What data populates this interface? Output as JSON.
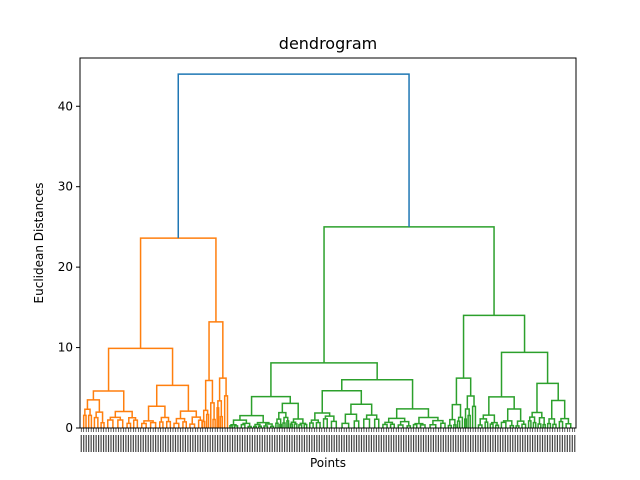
{
  "chart_data": {
    "type": "dendrogram",
    "title": "dendrogram",
    "xlabel": "Points",
    "ylabel": "Euclidean Distances",
    "ylim": [
      0,
      46
    ],
    "yticks": [
      0,
      10,
      20,
      30,
      40
    ],
    "leaf_count": 200,
    "grid": false,
    "legend": "none",
    "colors": {
      "root": "#1f77b4",
      "cluster_1": "#ff7f0e",
      "cluster_2": "#2ca02c",
      "axis": "#000000"
    },
    "merges": {
      "root": {
        "height": 44.0,
        "left_child_height": 23.6,
        "right_child_height": 25.0
      },
      "cluster_1": {
        "top": 23.6,
        "subclusters": [
          {
            "height": 9.9,
            "children": [
              4.6,
              5.3
            ]
          },
          {
            "height": 13.2,
            "children": [
              5.9,
              6.2
            ]
          }
        ]
      },
      "cluster_2": {
        "top": 25.0,
        "subclusters": [
          {
            "height": 8.1,
            "children": [
              3.9,
              6.0
            ]
          },
          {
            "height": 14.0,
            "children": [
              6.2,
              9.4
            ]
          }
        ]
      }
    }
  }
}
